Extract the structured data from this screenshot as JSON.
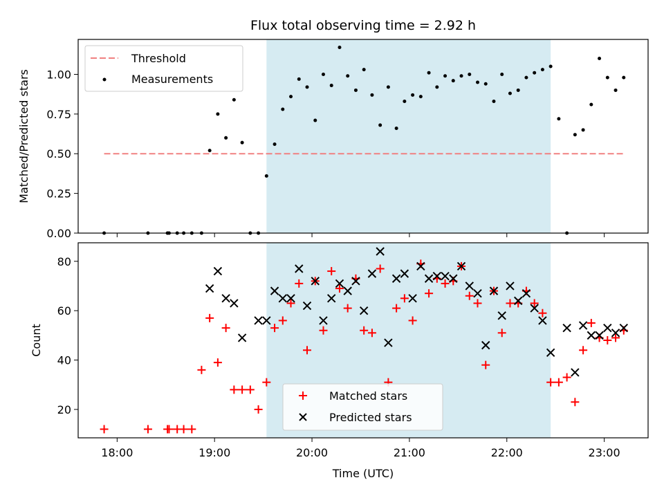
{
  "chart_data": [
    {
      "type": "scatter",
      "title": "Flux total observing time = 2.92 h",
      "xlabel": "",
      "ylabel": "Matched/Predicted stars",
      "xlim": [
        "17:36",
        "23:27"
      ],
      "ylim": [
        0,
        1.22
      ],
      "yticks": [
        "0.00",
        "0.25",
        "0.50",
        "0.75",
        "1.00"
      ],
      "xticks": [
        "18:00",
        "19:00",
        "20:00",
        "21:00",
        "22:00",
        "23:00"
      ],
      "shaded_interval": [
        "19:32",
        "22:27"
      ],
      "threshold": {
        "name": "Threshold",
        "y": 0.5,
        "x": [
          "17:52",
          "23:12"
        ],
        "color": "#f08080"
      },
      "legend_position": "upper left",
      "series": [
        {
          "name": "Measurements",
          "color": "#000000",
          "marker": "dot",
          "x": [
            "17:52",
            "18:19",
            "18:31",
            "18:32",
            "18:37",
            "18:41",
            "18:46",
            "18:52",
            "18:57",
            "19:02",
            "19:07",
            "19:12",
            "19:17",
            "19:22",
            "19:27",
            "19:32",
            "19:37",
            "19:42",
            "19:47",
            "19:52",
            "19:57",
            "20:02",
            "20:07",
            "20:12",
            "20:17",
            "20:22",
            "20:27",
            "20:32",
            "20:37",
            "20:42",
            "20:47",
            "20:52",
            "20:57",
            "21:02",
            "21:07",
            "21:12",
            "21:17",
            "21:22",
            "21:27",
            "21:32",
            "21:37",
            "21:42",
            "21:47",
            "21:52",
            "21:57",
            "22:02",
            "22:07",
            "22:12",
            "22:17",
            "22:22",
            "22:27",
            "22:32",
            "22:37",
            "22:42",
            "22:47",
            "22:52",
            "22:57",
            "23:02",
            "23:07",
            "23:12"
          ],
          "y": [
            0.0,
            0.0,
            0.0,
            0.0,
            0.0,
            0.0,
            0.0,
            0.0,
            0.52,
            0.75,
            0.6,
            0.84,
            0.57,
            0.0,
            0.0,
            0.36,
            0.56,
            0.78,
            0.86,
            0.97,
            0.92,
            0.71,
            1.0,
            0.93,
            1.17,
            0.99,
            0.9,
            1.03,
            0.87,
            0.68,
            0.92,
            0.66,
            0.83,
            0.87,
            0.86,
            1.01,
            0.92,
            0.99,
            0.96,
            0.99,
            1.0,
            0.95,
            0.94,
            0.83,
            1.0,
            0.88,
            0.9,
            0.98,
            1.01,
            1.03,
            1.05,
            0.72,
            0.0,
            0.62,
            0.65,
            0.81,
            1.1,
            0.98,
            0.9,
            0.98
          ]
        }
      ]
    },
    {
      "type": "scatter",
      "title": "",
      "xlabel": "Time (UTC)",
      "ylabel": "Count",
      "xlim": [
        "17:36",
        "23:27"
      ],
      "ylim": [
        8.5,
        87.5
      ],
      "yticks": [
        "20",
        "40",
        "60",
        "80"
      ],
      "xticks": [
        "18:00",
        "19:00",
        "20:00",
        "21:00",
        "22:00",
        "23:00"
      ],
      "shaded_interval": [
        "19:32",
        "22:27"
      ],
      "legend_position": "lower center",
      "series": [
        {
          "name": "Matched stars",
          "color": "#ff0000",
          "marker": "plus",
          "x": [
            "17:52",
            "18:19",
            "18:31",
            "18:32",
            "18:37",
            "18:41",
            "18:46",
            "18:52",
            "18:57",
            "19:02",
            "19:07",
            "19:12",
            "19:17",
            "19:22",
            "19:27",
            "19:32",
            "19:37",
            "19:42",
            "19:47",
            "19:52",
            "19:57",
            "20:02",
            "20:07",
            "20:12",
            "20:17",
            "20:22",
            "20:27",
            "20:32",
            "20:37",
            "20:42",
            "20:47",
            "20:52",
            "20:57",
            "21:02",
            "21:07",
            "21:12",
            "21:17",
            "21:22",
            "21:27",
            "21:32",
            "21:37",
            "21:42",
            "21:47",
            "21:52",
            "21:57",
            "22:02",
            "22:07",
            "22:12",
            "22:17",
            "22:22",
            "22:27",
            "22:32",
            "22:37",
            "22:42",
            "22:47",
            "22:52",
            "22:57",
            "23:02",
            "23:07",
            "23:12"
          ],
          "y": [
            12,
            12,
            12,
            12,
            12,
            12,
            12,
            36,
            57,
            39,
            53,
            28,
            28,
            28,
            20,
            31,
            53,
            56,
            63,
            71,
            44,
            72,
            52,
            76,
            69,
            61,
            73,
            52,
            51,
            77,
            31,
            61,
            65,
            56,
            79,
            67,
            73,
            71,
            72,
            78,
            66,
            63,
            38,
            68,
            51,
            63,
            63,
            68,
            63,
            59,
            31,
            31,
            33,
            23,
            44,
            55,
            49,
            48,
            49,
            52
          ]
        },
        {
          "name": "Predicted stars",
          "color": "#000000",
          "marker": "x",
          "x": [
            "18:57",
            "19:02",
            "19:07",
            "19:12",
            "19:17",
            "19:27",
            "19:32",
            "19:37",
            "19:42",
            "19:47",
            "19:52",
            "19:57",
            "20:02",
            "20:07",
            "20:12",
            "20:17",
            "20:22",
            "20:27",
            "20:32",
            "20:37",
            "20:42",
            "20:47",
            "20:52",
            "20:57",
            "21:02",
            "21:07",
            "21:12",
            "21:17",
            "21:22",
            "21:27",
            "21:32",
            "21:37",
            "21:42",
            "21:47",
            "21:52",
            "21:57",
            "22:02",
            "22:07",
            "22:12",
            "22:17",
            "22:22",
            "22:27",
            "22:37",
            "22:42",
            "22:47",
            "22:52",
            "22:57",
            "23:02",
            "23:07",
            "23:12"
          ],
          "y": [
            69,
            76,
            65,
            63,
            49,
            56,
            56,
            68,
            65,
            65,
            77,
            62,
            72,
            56,
            65,
            71,
            68,
            72,
            60,
            75,
            84,
            47,
            73,
            75,
            65,
            78,
            73,
            74,
            74,
            73,
            78,
            70,
            67,
            46,
            68,
            58,
            70,
            64,
            67,
            61,
            56,
            43,
            53,
            35,
            54,
            50,
            50,
            53,
            51,
            53
          ]
        }
      ]
    }
  ]
}
